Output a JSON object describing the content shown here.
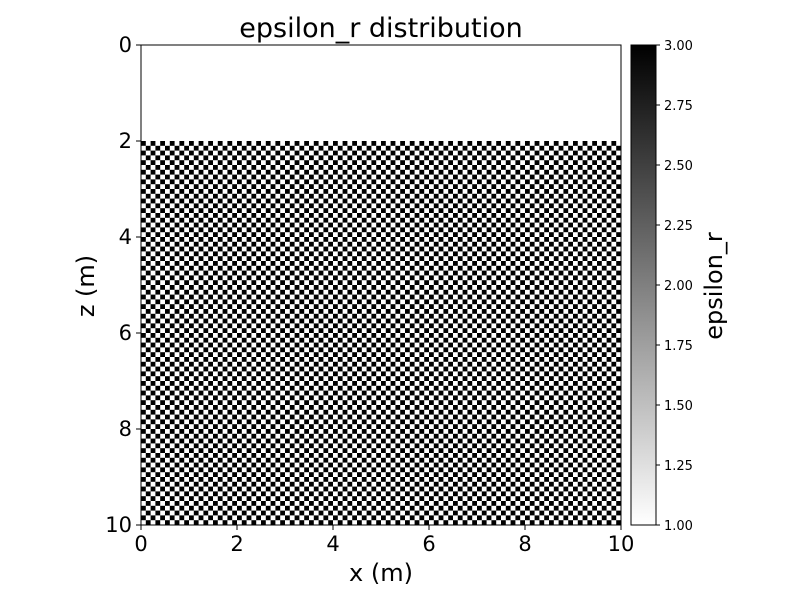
{
  "chart_data": {
    "type": "heatmap",
    "title": "epsilon_r distribution",
    "xlabel": "x (m)",
    "ylabel": "z (m)",
    "xlim": [
      0,
      10
    ],
    "ylim": [
      10,
      0
    ],
    "x_ticks": [
      "0",
      "2",
      "4",
      "6",
      "8",
      "10"
    ],
    "y_ticks": [
      "0",
      "2",
      "4",
      "6",
      "8",
      "10"
    ],
    "x_tick_values": [
      0,
      2,
      4,
      6,
      8,
      10
    ],
    "y_tick_values": [
      0,
      2,
      4,
      6,
      8,
      10
    ],
    "colormap": "gray_r",
    "vmin": 1.0,
    "vmax": 3.0,
    "colorbar": {
      "label": "epsilon_r",
      "ticks": [
        "1.00",
        "1.25",
        "1.50",
        "1.75",
        "2.00",
        "2.25",
        "2.50",
        "2.75",
        "3.00"
      ],
      "tick_values": [
        1.0,
        1.25,
        1.5,
        1.75,
        2.0,
        2.25,
        2.5,
        2.75,
        3.0
      ],
      "color_low": "#ffffff",
      "color_high": "#000000"
    },
    "regions": [
      {
        "name": "upper layer",
        "z_range": [
          0,
          2
        ],
        "x_range": [
          0,
          10
        ],
        "epsilon_r": 1.0
      },
      {
        "name": "checkerboard layer",
        "z_range": [
          2,
          10
        ],
        "x_range": [
          0,
          10
        ],
        "pattern": "checkerboard",
        "cell_size_m": 0.1,
        "epsilon_r_values": [
          1.0,
          3.0
        ]
      }
    ]
  }
}
